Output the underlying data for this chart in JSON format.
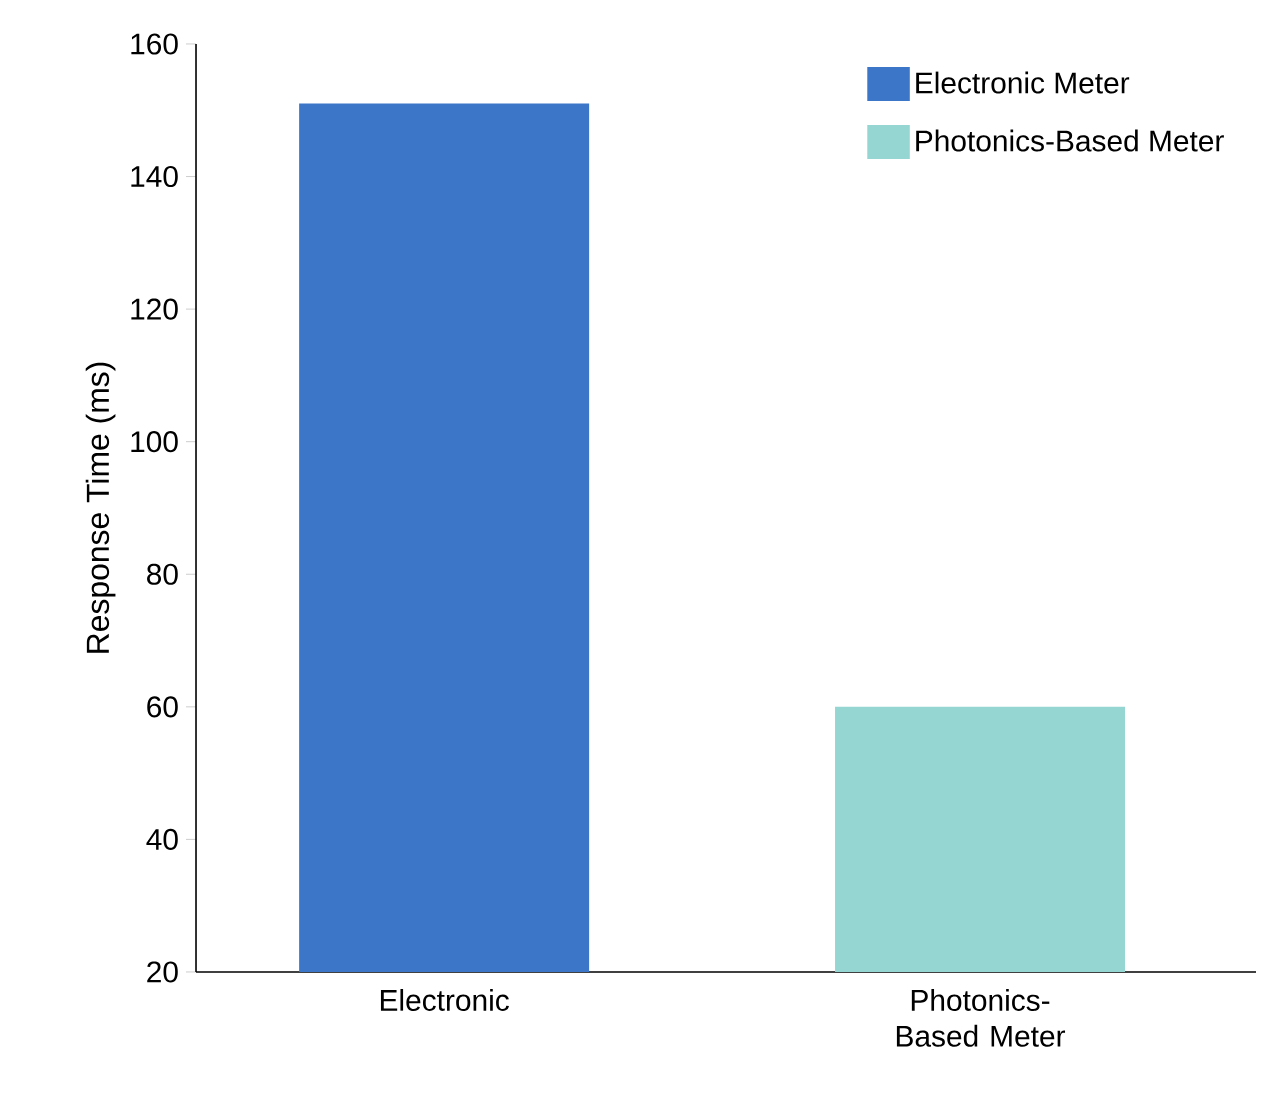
{
  "chart_data": {
    "type": "bar",
    "ylabel": "Response Time (ms)",
    "categories": [
      "Electronic",
      "Photonics-Based Meter"
    ],
    "series": [
      {
        "name": "Electronic Meter",
        "color": "#3b76c8",
        "values": [
          151,
          null
        ]
      },
      {
        "name": "Photonics-Based Meter",
        "color": "#96d6d2",
        "values": [
          null,
          60
        ]
      }
    ],
    "ylim": [
      20,
      160
    ],
    "yticks": [
      20,
      40,
      60,
      80,
      100,
      120,
      140,
      160
    ],
    "legend": "top right",
    "grid": false
  }
}
